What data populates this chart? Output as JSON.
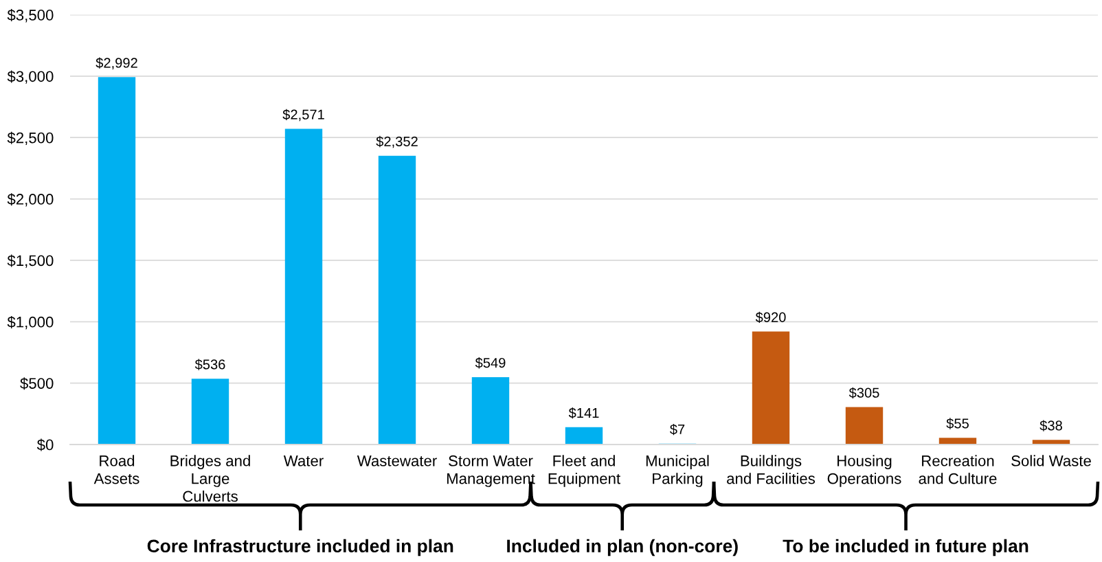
{
  "chart_data": {
    "type": "bar",
    "categories": [
      "Road\nAssets",
      "Bridges and\nLarge\nCulverts",
      "Water",
      "Wastewater",
      "Storm Water\nManagement",
      "Fleet and\nEquipment",
      "Municipal\nParking",
      "Buildings\nand Facilities",
      "Housing\nOperations",
      "Recreation\nand Culture",
      "Solid Waste"
    ],
    "values": [
      2992,
      536,
      2571,
      2352,
      549,
      141,
      7,
      920,
      305,
      55,
      38
    ],
    "colors": [
      "#00b0f0",
      "#00b0f0",
      "#00b0f0",
      "#00b0f0",
      "#00b0f0",
      "#00b0f0",
      "#00b0f0",
      "#c55a11",
      "#c55a11",
      "#c55a11",
      "#c55a11"
    ],
    "value_labels": [
      "$2,992",
      "$536",
      "$2,571",
      "$2,352",
      "$549",
      "$141",
      "$7",
      "$920",
      "$305",
      "$55",
      "$38"
    ],
    "ylim": [
      0,
      3500
    ],
    "yticks": [
      {
        "value": 0,
        "label": "$0"
      },
      {
        "value": 500,
        "label": "$500"
      },
      {
        "value": 1000,
        "label": "$1,000"
      },
      {
        "value": 1500,
        "label": "$1,500"
      },
      {
        "value": 2000,
        "label": "$2,000"
      },
      {
        "value": 2500,
        "label": "$2,500"
      },
      {
        "value": 3000,
        "label": "$3,000"
      },
      {
        "value": 3500,
        "label": "$3,500"
      }
    ],
    "grid": "y",
    "annotations": [
      "Core Infrastructure included in plan",
      "Included in plan (non-core)",
      "To be included in future plan"
    ]
  }
}
